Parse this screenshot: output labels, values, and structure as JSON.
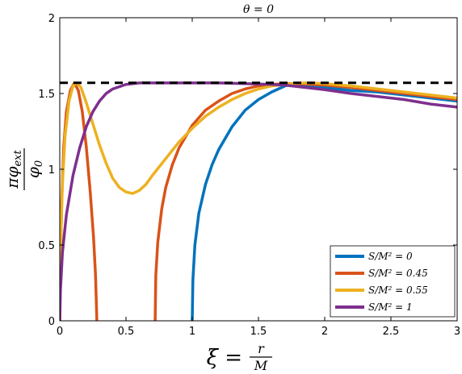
{
  "chart_data": {
    "type": "line",
    "title": "θ = 0",
    "xlabel": "ξ = r/M",
    "ylabel": "πφ_ext/φ_0",
    "xlim": [
      0,
      3
    ],
    "ylim": [
      0,
      2
    ],
    "xticks": [
      "0",
      "0.5",
      "1",
      "1.5",
      "2",
      "2.5",
      "3"
    ],
    "yticks": [
      "0",
      "0.5",
      "1",
      "1.5",
      "2"
    ],
    "grid": false,
    "legend_position": "bottom-right",
    "reference_line": {
      "y": 1.5708,
      "style": "dashed",
      "color": "#000000"
    },
    "series": [
      {
        "name": "S/M² = 0",
        "color": "#0072BD",
        "segments": [
          [
            [
              1.0,
              0.0
            ],
            [
              1.005,
              0.27
            ],
            [
              1.02,
              0.5
            ],
            [
              1.05,
              0.71
            ],
            [
              1.1,
              0.9
            ],
            [
              1.15,
              1.03
            ],
            [
              1.2,
              1.13
            ],
            [
              1.3,
              1.28
            ],
            [
              1.4,
              1.39
            ],
            [
              1.5,
              1.46
            ],
            [
              1.6,
              1.51
            ],
            [
              1.7,
              1.55
            ],
            [
              1.75,
              1.56
            ],
            [
              1.8,
              1.56
            ],
            [
              1.9,
              1.55
            ],
            [
              2.0,
              1.54
            ],
            [
              2.2,
              1.52
            ],
            [
              2.4,
              1.51
            ],
            [
              2.6,
              1.49
            ],
            [
              2.8,
              1.47
            ],
            [
              3.0,
              1.45
            ]
          ]
        ]
      },
      {
        "name": "S/M² = 0.45",
        "color": "#D95319",
        "segments": [
          [
            [
              0.0,
              0.0
            ],
            [
              0.005,
              0.4
            ],
            [
              0.015,
              0.8
            ],
            [
              0.03,
              1.15
            ],
            [
              0.05,
              1.38
            ],
            [
              0.08,
              1.52
            ],
            [
              0.11,
              1.57
            ],
            [
              0.14,
              1.52
            ],
            [
              0.17,
              1.38
            ],
            [
              0.2,
              1.15
            ],
            [
              0.23,
              0.85
            ],
            [
              0.255,
              0.55
            ],
            [
              0.27,
              0.3
            ],
            [
              0.28,
              0.0
            ]
          ],
          [
            [
              0.72,
              0.0
            ],
            [
              0.725,
              0.3
            ],
            [
              0.74,
              0.52
            ],
            [
              0.77,
              0.74
            ],
            [
              0.8,
              0.88
            ],
            [
              0.85,
              1.03
            ],
            [
              0.9,
              1.14
            ],
            [
              1.0,
              1.29
            ],
            [
              1.1,
              1.39
            ],
            [
              1.2,
              1.45
            ],
            [
              1.3,
              1.5
            ],
            [
              1.4,
              1.53
            ],
            [
              1.5,
              1.55
            ],
            [
              1.6,
              1.56
            ],
            [
              1.7,
              1.565
            ],
            [
              1.8,
              1.565
            ],
            [
              1.9,
              1.56
            ],
            [
              2.0,
              1.555
            ],
            [
              2.2,
              1.54
            ],
            [
              2.4,
              1.52
            ],
            [
              2.6,
              1.5
            ],
            [
              2.8,
              1.48
            ],
            [
              3.0,
              1.46
            ]
          ]
        ]
      },
      {
        "name": "S/M² = 0.55",
        "color": "#EDB120",
        "segments": [
          [
            [
              0.0,
              0.0
            ],
            [
              0.005,
              0.45
            ],
            [
              0.02,
              0.9
            ],
            [
              0.04,
              1.22
            ],
            [
              0.07,
              1.45
            ],
            [
              0.1,
              1.55
            ],
            [
              0.13,
              1.57
            ],
            [
              0.16,
              1.54
            ],
            [
              0.2,
              1.44
            ],
            [
              0.25,
              1.3
            ],
            [
              0.3,
              1.16
            ],
            [
              0.35,
              1.04
            ],
            [
              0.4,
              0.94
            ],
            [
              0.45,
              0.88
            ],
            [
              0.5,
              0.85
            ],
            [
              0.55,
              0.84
            ],
            [
              0.6,
              0.86
            ],
            [
              0.65,
              0.9
            ],
            [
              0.7,
              0.96
            ],
            [
              0.8,
              1.07
            ],
            [
              0.9,
              1.18
            ],
            [
              1.0,
              1.27
            ],
            [
              1.1,
              1.35
            ],
            [
              1.2,
              1.41
            ],
            [
              1.3,
              1.46
            ],
            [
              1.4,
              1.5
            ],
            [
              1.5,
              1.53
            ],
            [
              1.6,
              1.55
            ],
            [
              1.7,
              1.56
            ],
            [
              1.8,
              1.57
            ],
            [
              1.9,
              1.57
            ],
            [
              2.0,
              1.565
            ],
            [
              2.2,
              1.55
            ],
            [
              2.4,
              1.53
            ],
            [
              2.6,
              1.51
            ],
            [
              2.8,
              1.49
            ],
            [
              3.0,
              1.47
            ]
          ]
        ]
      },
      {
        "name": "S/M² = 1",
        "color": "#7E2F8E",
        "segments": [
          [
            [
              0.0,
              0.0
            ],
            [
              0.005,
              0.2
            ],
            [
              0.02,
              0.45
            ],
            [
              0.05,
              0.7
            ],
            [
              0.1,
              0.96
            ],
            [
              0.15,
              1.14
            ],
            [
              0.2,
              1.28
            ],
            [
              0.25,
              1.38
            ],
            [
              0.3,
              1.45
            ],
            [
              0.35,
              1.5
            ],
            [
              0.4,
              1.53
            ],
            [
              0.5,
              1.56
            ],
            [
              0.6,
              1.57
            ],
            [
              0.8,
              1.57
            ],
            [
              1.0,
              1.57
            ],
            [
              1.2,
              1.57
            ],
            [
              1.4,
              1.565
            ],
            [
              1.6,
              1.56
            ],
            [
              1.7,
              1.555
            ],
            [
              1.8,
              1.545
            ],
            [
              2.0,
              1.525
            ],
            [
              2.2,
              1.5
            ],
            [
              2.4,
              1.48
            ],
            [
              2.6,
              1.46
            ],
            [
              2.8,
              1.43
            ],
            [
              3.0,
              1.41
            ]
          ]
        ]
      }
    ]
  }
}
